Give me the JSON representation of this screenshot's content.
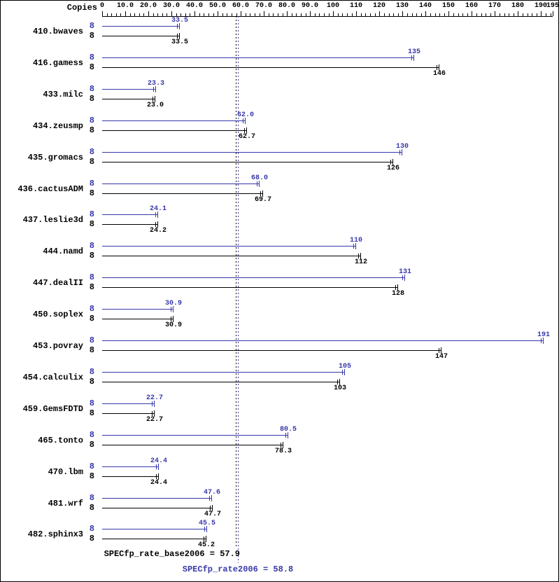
{
  "header": {
    "copies_label": "Copies"
  },
  "summary": {
    "base_text": "SPECfp_rate_base2006 = 57.9",
    "peak_text": "SPECfp_rate2006 = 58.8"
  },
  "colors": {
    "peak": "#3737aa",
    "base": "#000000"
  },
  "chart_data": {
    "type": "bar",
    "orientation": "horizontal",
    "xlim": [
      0,
      195
    ],
    "minor_tick_step": 2,
    "grid": false,
    "x_ticks": [
      {
        "value": 0,
        "label": "0"
      },
      {
        "value": 10,
        "label": "10.0"
      },
      {
        "value": 20,
        "label": "20.0"
      },
      {
        "value": 30,
        "label": "30.0"
      },
      {
        "value": 40,
        "label": "40.0"
      },
      {
        "value": 50,
        "label": "50.0"
      },
      {
        "value": 60,
        "label": "60.0"
      },
      {
        "value": 70,
        "label": "70.0"
      },
      {
        "value": 80,
        "label": "80.0"
      },
      {
        "value": 90,
        "label": "90.0"
      },
      {
        "value": 100,
        "label": "100"
      },
      {
        "value": 110,
        "label": "110"
      },
      {
        "value": 120,
        "label": "120"
      },
      {
        "value": 130,
        "label": "130"
      },
      {
        "value": 140,
        "label": "140"
      },
      {
        "value": 150,
        "label": "150"
      },
      {
        "value": 160,
        "label": "160"
      },
      {
        "value": 170,
        "label": "170"
      },
      {
        "value": 180,
        "label": "180"
      },
      {
        "value": 190,
        "label": "190"
      },
      {
        "value": 195,
        "label": "195"
      }
    ],
    "series_names": {
      "peak": "SPECfp_rate2006",
      "base": "SPECfp_rate_base2006"
    },
    "means": {
      "base": 57.9,
      "base_label": "57.9",
      "peak": 58.8,
      "peak_label": "58.8"
    },
    "benchmarks": [
      {
        "name": "410.bwaves",
        "copies": "8",
        "peak": 33.5,
        "peak_label": "33.5",
        "base": 33.5,
        "base_label": "33.5"
      },
      {
        "name": "416.gamess",
        "copies": "8",
        "peak": 135,
        "peak_label": "135",
        "base": 146,
        "base_label": "146"
      },
      {
        "name": "433.milc",
        "copies": "8",
        "peak": 23.3,
        "peak_label": "23.3",
        "base": 23.0,
        "base_label": "23.0"
      },
      {
        "name": "434.zeusmp",
        "copies": "8",
        "peak": 62.0,
        "peak_label": "62.0",
        "base": 62.7,
        "base_label": "62.7"
      },
      {
        "name": "435.gromacs",
        "copies": "8",
        "peak": 130,
        "peak_label": "130",
        "base": 126,
        "base_label": "126"
      },
      {
        "name": "436.cactusADM",
        "copies": "8",
        "peak": 68.0,
        "peak_label": "68.0",
        "base": 69.7,
        "base_label": "69.7"
      },
      {
        "name": "437.leslie3d",
        "copies": "8",
        "peak": 24.1,
        "peak_label": "24.1",
        "base": 24.2,
        "base_label": "24.2"
      },
      {
        "name": "444.namd",
        "copies": "8",
        "peak": 110,
        "peak_label": "110",
        "base": 112,
        "base_label": "112"
      },
      {
        "name": "447.dealII",
        "copies": "8",
        "peak": 131,
        "peak_label": "131",
        "base": 128,
        "base_label": "128"
      },
      {
        "name": "450.soplex",
        "copies": "8",
        "peak": 30.9,
        "peak_label": "30.9",
        "base": 30.9,
        "base_label": "30.9"
      },
      {
        "name": "453.povray",
        "copies": "8",
        "peak": 191,
        "peak_label": "191",
        "base": 147,
        "base_label": "147"
      },
      {
        "name": "454.calculix",
        "copies": "8",
        "peak": 105,
        "peak_label": "105",
        "base": 103,
        "base_label": "103"
      },
      {
        "name": "459.GemsFDTD",
        "copies": "8",
        "peak": 22.7,
        "peak_label": "22.7",
        "base": 22.7,
        "base_label": "22.7"
      },
      {
        "name": "465.tonto",
        "copies": "8",
        "peak": 80.5,
        "peak_label": "80.5",
        "base": 78.3,
        "base_label": "78.3"
      },
      {
        "name": "470.lbm",
        "copies": "8",
        "peak": 24.4,
        "peak_label": "24.4",
        "base": 24.4,
        "base_label": "24.4"
      },
      {
        "name": "481.wrf",
        "copies": "8",
        "peak": 47.6,
        "peak_label": "47.6",
        "base": 47.7,
        "base_label": "47.7"
      },
      {
        "name": "482.sphinx3",
        "copies": "8",
        "peak": 45.5,
        "peak_label": "45.5",
        "base": 45.2,
        "base_label": "45.2"
      }
    ]
  }
}
